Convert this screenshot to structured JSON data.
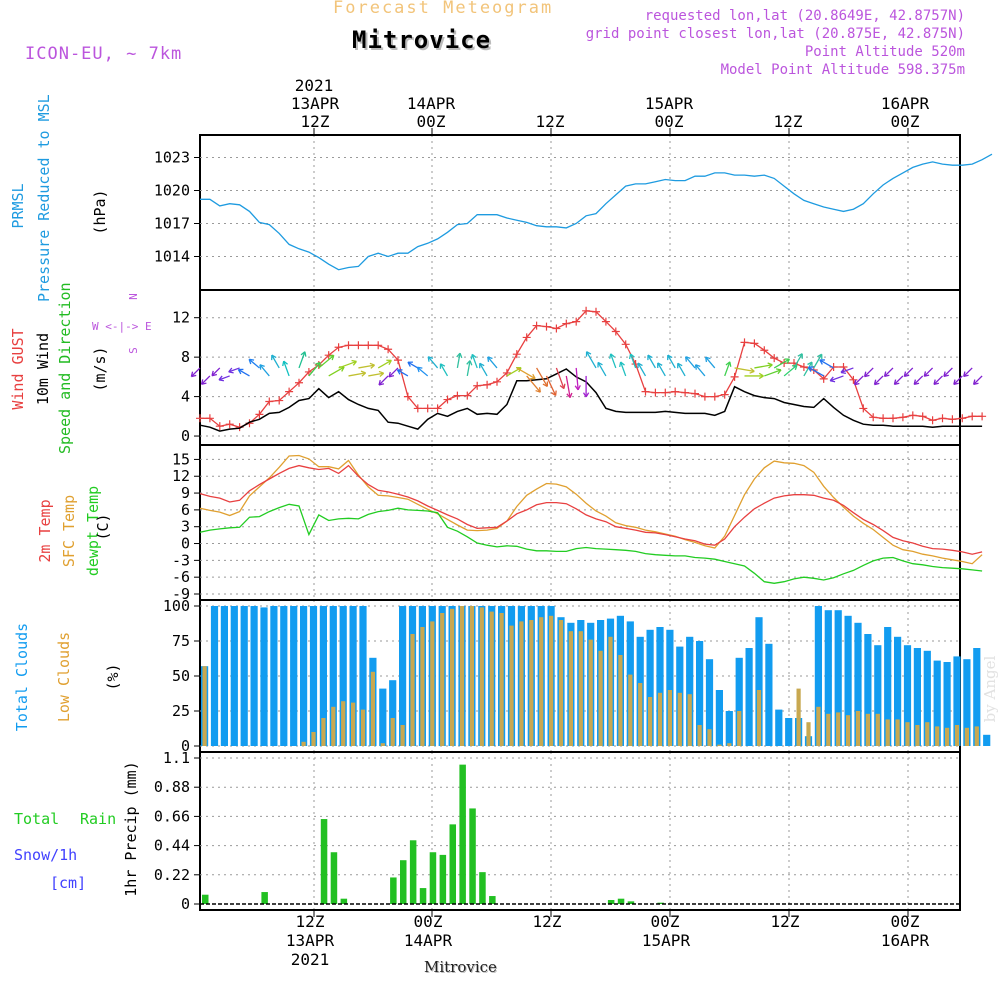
{
  "header": {
    "subtitle": "Forecast Meteogram",
    "title": "Mitrovice",
    "model": "ICON-EU, ~ 7km",
    "requested": "requested lon,lat (20.8649E, 42.8757N)",
    "grid_point": "grid point closest lon,lat (20.875E, 42.875N)",
    "point_alt": "Point Altitude 520m",
    "model_alt": "Model Point Altitude 598.375m",
    "credit": "by Angel",
    "bottom_label": "Mitrovice"
  },
  "time_axis": {
    "ticks": [
      {
        "top": "12Z",
        "date": "13APR",
        "year": "2021"
      },
      {
        "top": "00Z",
        "date": "14APR",
        "year": ""
      },
      {
        "top": "12Z",
        "date": "",
        "year": ""
      },
      {
        "top": "00Z",
        "date": "15APR",
        "year": ""
      },
      {
        "top": "12Z",
        "date": "",
        "year": ""
      },
      {
        "top": "00Z",
        "date": "16APR",
        "year": ""
      }
    ]
  },
  "labels": {
    "pressure": [
      "PRMSL",
      "Pressure Reduced to MSL",
      "(hPa)"
    ],
    "wind": [
      "Wind GUST",
      "10m Wind",
      "Speed and Direction",
      "(m/s)"
    ],
    "compass": [
      "N",
      "W <-|-> E",
      "S"
    ],
    "temp": [
      "2m Temp",
      "SFC Temp",
      "dewpt Temp",
      "(C)"
    ],
    "clouds": [
      "Total Clouds",
      "Low Clouds",
      "(%)"
    ],
    "precip": [
      "Total",
      "Rain",
      "Snow/1h",
      "[cm]",
      "1hr Precip (mm)"
    ]
  },
  "colors": {
    "pressure": "#1e9be0",
    "gust": "#e84040",
    "wind": "#000000",
    "temp2m": "#e84040",
    "sfc": "#e0a030",
    "dewpt": "#22cc22",
    "total_clouds": "#129cf0",
    "low_clouds": "#c8a850",
    "rain": "#22c022",
    "snow": "#4040ff",
    "label_purple": "#bb55dd"
  },
  "chart_data": [
    {
      "type": "line",
      "title": "PRMSL Pressure Reduced to MSL",
      "ylabel": "(hPa)",
      "ylim": [
        1011.5,
        1024.5
      ],
      "yticks": [
        1014,
        1017,
        1020,
        1023
      ],
      "hours_start": 0,
      "series": [
        {
          "name": "PRMSL",
          "values": [
            1019.2,
            1019.2,
            1018.6,
            1018.8,
            1018.7,
            1018.1,
            1017.1,
            1016.9,
            1016.1,
            1015.1,
            1014.7,
            1014.4,
            1013.9,
            1013.3,
            1012.8,
            1013.0,
            1013.1,
            1014.0,
            1014.3,
            1014.0,
            1014.3,
            1014.3,
            1014.9,
            1015.2,
            1015.6,
            1016.2,
            1016.9,
            1017.0,
            1017.8,
            1017.8,
            1017.8,
            1017.5,
            1017.3,
            1017.1,
            1016.8,
            1016.7,
            1016.7,
            1016.6,
            1017.0,
            1017.7,
            1017.9,
            1018.8,
            1019.6,
            1020.4,
            1020.6,
            1020.6,
            1020.8,
            1021.0,
            1020.9,
            1020.9,
            1021.3,
            1021.3,
            1021.6,
            1021.6,
            1021.4,
            1021.4,
            1021.3,
            1021.4,
            1021.1,
            1020.4,
            1019.7,
            1019.1,
            1018.8,
            1018.5,
            1018.3,
            1018.1,
            1018.3,
            1018.8,
            1019.7,
            1020.5,
            1021.1,
            1021.6,
            1022.1,
            1022.4,
            1022.6,
            1022.4,
            1022.3,
            1022.3,
            1022.4,
            1022.8,
            1023.3
          ]
        }
      ]
    },
    {
      "type": "line",
      "title": "Wind GUST / 10m Wind Speed and Direction",
      "ylabel": "(m/s)",
      "ylim": [
        -0.3,
        14.2
      ],
      "yticks": [
        0,
        4,
        8,
        12
      ],
      "series": [
        {
          "name": "Wind GUST",
          "values": [
            1.8,
            1.8,
            1.0,
            1.2,
            0.9,
            1.3,
            2.2,
            3.5,
            3.6,
            4.5,
            5.4,
            6.5,
            7.2,
            8.2,
            9.0,
            9.2,
            9.2,
            9.2,
            9.2,
            8.8,
            7.7,
            4.0,
            2.8,
            2.8,
            2.8,
            3.7,
            4.1,
            4.1,
            5.1,
            5.2,
            5.5,
            6.4,
            8.3,
            10.0,
            11.2,
            11.1,
            10.9,
            11.4,
            11.6,
            12.7,
            12.6,
            11.6,
            10.6,
            9.3,
            7.3,
            4.5,
            4.4,
            4.4,
            4.5,
            4.4,
            4.3,
            4.0,
            4.0,
            4.2,
            6.0,
            9.5,
            9.4,
            8.7,
            7.9,
            7.4,
            7.4,
            7.0,
            6.7,
            5.8,
            7.0,
            7.0,
            5.7,
            2.8,
            1.9,
            1.8,
            1.8,
            1.9,
            2.1,
            2.0,
            1.6,
            1.8,
            1.7,
            1.8,
            2.0,
            2.0
          ]
        },
        {
          "name": "10m Wind",
          "values": [
            1.1,
            0.9,
            0.5,
            0.7,
            0.8,
            1.4,
            1.7,
            2.3,
            2.4,
            2.9,
            3.6,
            3.8,
            4.8,
            3.9,
            4.5,
            3.7,
            3.2,
            2.8,
            2.6,
            1.4,
            1.3,
            1.0,
            0.7,
            1.7,
            2.3,
            2.0,
            2.5,
            2.8,
            2.2,
            2.3,
            2.2,
            3.2,
            5.6,
            5.6,
            5.7,
            5.8,
            6.3,
            6.8,
            6.0,
            5.5,
            4.4,
            2.8,
            2.5,
            2.4,
            2.4,
            2.4,
            2.4,
            2.5,
            2.4,
            2.3,
            2.3,
            2.3,
            2.1,
            2.5,
            5.0,
            4.5,
            4.1,
            3.9,
            3.8,
            3.4,
            3.2,
            3.0,
            2.9,
            3.8,
            2.9,
            2.1,
            1.6,
            1.2,
            1.1,
            1.1,
            1.0,
            1.0,
            1.0,
            1.0,
            0.9,
            1.0,
            1.0,
            1.0,
            1.0,
            1.0
          ]
        }
      ],
      "direction_colors": [
        "#8020d0",
        "#8020d0",
        "#8020d0",
        "#7030e0",
        "#7030e0",
        "#2070f0",
        "#2080f0",
        "#20a0e0",
        "#20b0d0",
        "#10c0c0",
        "#20c090",
        "#40d050",
        "#60d030",
        "#80d020",
        "#a0d020",
        "#c0c030",
        "#c0c030",
        "#c0c030",
        "#a0d020",
        "#8020d0",
        "#8020d0",
        "#2070f0",
        "#2070f0",
        "#2090f0",
        "#20b0d0",
        "#20c0c0",
        "#30c0a0",
        "#30c0a0",
        "#20c0c0",
        "#20b0d0",
        "#20a0e0",
        "#a0d020",
        "#e0a030",
        "#e08030",
        "#e07030",
        "#e06030",
        "#e04050",
        "#d02090",
        "#c020c0",
        "#a020d0",
        "#20b0d0",
        "#20b0d0",
        "#20c0c0",
        "#20c0c0",
        "#20c0c0",
        "#20b0d0",
        "#20b0d0",
        "#20b0d0",
        "#20b0d0",
        "#20b0d0",
        "#20a0e0",
        "#20a0e0",
        "#20a0e0",
        "#40d050",
        "#c0c030",
        "#a0d020",
        "#80d020",
        "#60d030",
        "#40d050",
        "#30d070",
        "#30c0a0",
        "#30c0a0",
        "#30c0a0",
        "#2070f0",
        "#2070f0",
        "#7030e0",
        "#7030e0",
        "#8020d0",
        "#8020d0",
        "#8020d0",
        "#8020d0",
        "#8020d0",
        "#8020d0",
        "#8020d0",
        "#8020d0",
        "#8020d0",
        "#8020d0",
        "#8020d0",
        "#8020d0",
        "#8020d0"
      ]
    },
    {
      "type": "line",
      "title": "2m Temp / SFC Temp / dewpt Temp",
      "ylabel": "(C)",
      "ylim": [
        -9,
        16.5
      ],
      "yticks": [
        -9,
        -6,
        -3,
        0,
        3,
        6,
        9,
        12,
        15
      ],
      "series": [
        {
          "name": "2m Temp",
          "values": [
            8.9,
            8.4,
            8.1,
            7.4,
            7.7,
            9.4,
            10.5,
            11.5,
            12.5,
            13.4,
            13.9,
            13.5,
            13.2,
            13.4,
            12.5,
            13.9,
            12.0,
            10.5,
            9.5,
            9.2,
            8.8,
            8.3,
            7.6,
            6.7,
            5.9,
            5.1,
            4.4,
            3.4,
            2.7,
            2.8,
            2.9,
            4.0,
            5.3,
            6.0,
            6.9,
            7.3,
            7.3,
            7.1,
            6.2,
            5.1,
            4.4,
            3.9,
            3.0,
            2.7,
            2.4,
            2.0,
            1.9,
            1.6,
            1.2,
            0.8,
            0.5,
            -0.1,
            -0.3,
            0.8,
            3.0,
            4.7,
            6.2,
            7.2,
            8.1,
            8.5,
            8.7,
            8.7,
            8.6,
            8.1,
            7.7,
            6.8,
            5.5,
            4.3,
            3.4,
            2.3,
            1.1,
            0.5,
            0.1,
            -0.5,
            -0.9,
            -1.0,
            -1.2,
            -1.5,
            -1.9,
            -1.5
          ]
        },
        {
          "name": "SFC Temp",
          "values": [
            6.3,
            5.9,
            5.6,
            5.0,
            5.7,
            8.5,
            10.1,
            11.7,
            13.6,
            15.6,
            15.7,
            15.1,
            13.7,
            13.7,
            13.3,
            14.8,
            12.2,
            10.1,
            8.6,
            8.5,
            8.2,
            7.9,
            7.0,
            6.1,
            5.3,
            4.3,
            3.3,
            2.4,
            2.3,
            2.4,
            2.7,
            4.0,
            6.6,
            8.6,
            9.7,
            10.7,
            10.6,
            10.1,
            8.8,
            7.2,
            5.8,
            4.9,
            3.7,
            3.2,
            2.9,
            2.4,
            2.1,
            1.7,
            1.3,
            0.7,
            0.2,
            -0.4,
            -0.8,
            1.3,
            5.0,
            8.7,
            11.5,
            13.5,
            14.7,
            14.4,
            14.3,
            13.9,
            12.7,
            10.2,
            8.2,
            6.5,
            4.9,
            3.6,
            2.5,
            1.1,
            -0.3,
            -1.1,
            -1.4,
            -1.9,
            -2.2,
            -2.6,
            -2.9,
            -3.2,
            -3.6,
            -2.0
          ]
        },
        {
          "name": "dewpt Temp",
          "values": [
            2.0,
            2.4,
            2.6,
            2.8,
            2.9,
            4.7,
            4.8,
            5.7,
            6.4,
            7.0,
            6.7,
            1.6,
            5.1,
            4.1,
            4.4,
            4.5,
            4.4,
            5.2,
            5.7,
            5.9,
            6.3,
            6.0,
            5.9,
            5.8,
            5.5,
            2.9,
            2.2,
            1.2,
            0.1,
            -0.3,
            -0.6,
            -0.4,
            -0.5,
            -1.0,
            -1.3,
            -1.3,
            -1.4,
            -1.4,
            -0.9,
            -0.7,
            -0.9,
            -1.0,
            -1.1,
            -1.2,
            -1.4,
            -1.8,
            -2.0,
            -2.1,
            -2.2,
            -2.2,
            -2.5,
            -2.6,
            -2.8,
            -3.2,
            -3.6,
            -4.0,
            -5.3,
            -6.8,
            -7.1,
            -6.8,
            -6.3,
            -6.0,
            -6.2,
            -6.5,
            -6.1,
            -5.4,
            -4.8,
            -3.9,
            -3.1,
            -2.6,
            -2.5,
            -3.1,
            -3.6,
            -3.8,
            -4.1,
            -4.3,
            -4.4,
            -4.5,
            -4.7,
            -4.9
          ]
        }
      ]
    },
    {
      "type": "bar",
      "title": "Total Clouds / Low Clouds",
      "ylabel": "(%)",
      "ylim": [
        0,
        100
      ],
      "yticks": [
        0,
        25,
        50,
        75,
        100
      ],
      "series": [
        {
          "name": "Total Clouds",
          "values": [
            57,
            100,
            100,
            100,
            100,
            100,
            99,
            100,
            100,
            100,
            100,
            100,
            100,
            100,
            100,
            100,
            100,
            63,
            41,
            47,
            100,
            100,
            100,
            100,
            100,
            100,
            100,
            100,
            100,
            100,
            100,
            100,
            100,
            100,
            100,
            100,
            92,
            88,
            90,
            88,
            90,
            91,
            93,
            89,
            78,
            83,
            85,
            83,
            71,
            78,
            75,
            62,
            40,
            25,
            63,
            70,
            92,
            73,
            26,
            20,
            20,
            7,
            100,
            97,
            97,
            93,
            88,
            80,
            72,
            85,
            78,
            72,
            70,
            68,
            61,
            60,
            64,
            62,
            70,
            8
          ]
        },
        {
          "name": "Low Clouds",
          "values": [
            57,
            0,
            0,
            0,
            0,
            0,
            0,
            0,
            0,
            0,
            3,
            10,
            20,
            28,
            32,
            31,
            26,
            53,
            2,
            20,
            15,
            80,
            85,
            89,
            95,
            98,
            100,
            100,
            99,
            96,
            95,
            86,
            89,
            90,
            92,
            93,
            90,
            82,
            82,
            76,
            68,
            78,
            65,
            51,
            45,
            35,
            38,
            40,
            38,
            37,
            15,
            12,
            1,
            2,
            25,
            0,
            40,
            0,
            0,
            0,
            41,
            17,
            28,
            23,
            24,
            22,
            25,
            23,
            23,
            19,
            19,
            17,
            15,
            17,
            14,
            13,
            15,
            13,
            14,
            0
          ]
        }
      ]
    },
    {
      "type": "bar",
      "title": "1hr Precip (mm)",
      "ylabel": "1hr Precip (mm)",
      "ylim": [
        0,
        1.1
      ],
      "yticks": [
        0,
        0.22,
        0.44,
        0.66,
        0.88,
        1.1
      ],
      "series": [
        {
          "name": "Total Rain",
          "values": [
            0.07,
            0,
            0,
            0,
            0,
            0,
            0.09,
            0,
            0,
            0,
            0,
            0,
            0.64,
            0.39,
            0.04,
            0,
            0,
            0,
            0,
            0.2,
            0.33,
            0.48,
            0.12,
            0.39,
            0.37,
            0.6,
            1.05,
            0.72,
            0.24,
            0.06,
            0,
            0,
            0,
            0,
            0,
            0,
            0,
            0,
            0,
            0,
            0,
            0.03,
            0.04,
            0.02,
            0,
            0,
            0.01,
            0,
            0,
            0,
            0,
            0,
            0,
            0,
            0,
            0,
            0,
            0,
            0,
            0,
            0,
            0,
            0,
            0,
            0,
            0,
            0,
            0,
            0,
            0,
            0,
            0,
            0,
            0,
            0,
            0,
            0,
            0,
            0,
            0
          ]
        }
      ]
    }
  ]
}
